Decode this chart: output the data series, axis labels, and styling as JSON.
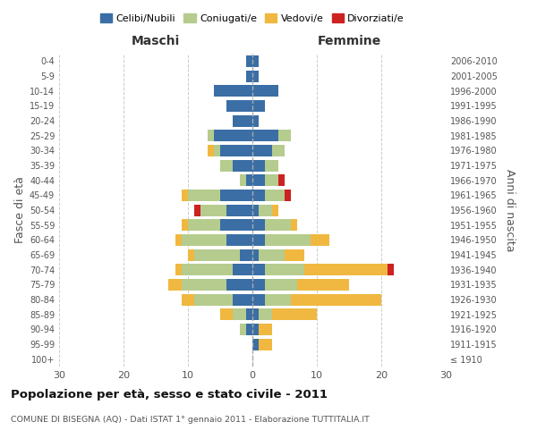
{
  "age_groups": [
    "0-4",
    "5-9",
    "10-14",
    "15-19",
    "20-24",
    "25-29",
    "30-34",
    "35-39",
    "40-44",
    "45-49",
    "50-54",
    "55-59",
    "60-64",
    "65-69",
    "70-74",
    "75-79",
    "80-84",
    "85-89",
    "90-94",
    "95-99",
    "100+"
  ],
  "birth_years": [
    "2006-2010",
    "2001-2005",
    "1996-2000",
    "1991-1995",
    "1986-1990",
    "1981-1985",
    "1976-1980",
    "1971-1975",
    "1966-1970",
    "1961-1965",
    "1956-1960",
    "1951-1955",
    "1946-1950",
    "1941-1945",
    "1936-1940",
    "1931-1935",
    "1926-1930",
    "1921-1925",
    "1916-1920",
    "1911-1915",
    "≤ 1910"
  ],
  "maschi": {
    "celibi": [
      1,
      1,
      6,
      4,
      3,
      6,
      5,
      3,
      1,
      5,
      4,
      5,
      4,
      2,
      3,
      4,
      3,
      1,
      1,
      0,
      0
    ],
    "coniugati": [
      0,
      0,
      0,
      0,
      0,
      1,
      1,
      2,
      1,
      5,
      4,
      5,
      7,
      7,
      8,
      7,
      6,
      2,
      1,
      0,
      0
    ],
    "vedovi": [
      0,
      0,
      0,
      0,
      0,
      0,
      1,
      0,
      0,
      1,
      0,
      1,
      1,
      1,
      1,
      2,
      2,
      2,
      0,
      0,
      0
    ],
    "divorziati": [
      0,
      0,
      0,
      0,
      0,
      0,
      0,
      0,
      0,
      0,
      1,
      0,
      0,
      0,
      0,
      0,
      0,
      0,
      0,
      0,
      0
    ]
  },
  "femmine": {
    "nubili": [
      1,
      1,
      4,
      2,
      1,
      4,
      3,
      2,
      2,
      2,
      1,
      2,
      2,
      1,
      2,
      2,
      2,
      1,
      1,
      1,
      0
    ],
    "coniugate": [
      0,
      0,
      0,
      0,
      0,
      2,
      2,
      2,
      2,
      3,
      2,
      4,
      7,
      4,
      6,
      5,
      4,
      2,
      0,
      0,
      0
    ],
    "vedove": [
      0,
      0,
      0,
      0,
      0,
      0,
      0,
      0,
      0,
      0,
      1,
      1,
      3,
      3,
      13,
      8,
      14,
      7,
      2,
      2,
      0
    ],
    "divorziate": [
      0,
      0,
      0,
      0,
      0,
      0,
      0,
      0,
      1,
      1,
      0,
      0,
      0,
      0,
      1,
      0,
      0,
      0,
      0,
      0,
      0
    ]
  },
  "colors": {
    "celibi": "#3a6ea5",
    "coniugati": "#b5cc8e",
    "vedovi": "#f0b840",
    "divorziati": "#cc2222"
  },
  "xlim": 30,
  "title": "Popolazione per età, sesso e stato civile - 2011",
  "subtitle": "COMUNE DI BISEGNA (AQ) - Dati ISTAT 1° gennaio 2011 - Elaborazione TUTTITALIA.IT",
  "xlabel_left": "Maschi",
  "xlabel_right": "Femmine",
  "ylabel_left": "Fasce di età",
  "ylabel_right": "Anni di nascita",
  "legend_labels": [
    "Celibi/Nubili",
    "Coniugati/e",
    "Vedovi/e",
    "Divorziati/e"
  ],
  "background_color": "#ffffff",
  "grid_color": "#cccccc",
  "label_color": "#555555",
  "femmine_color": "#333333"
}
